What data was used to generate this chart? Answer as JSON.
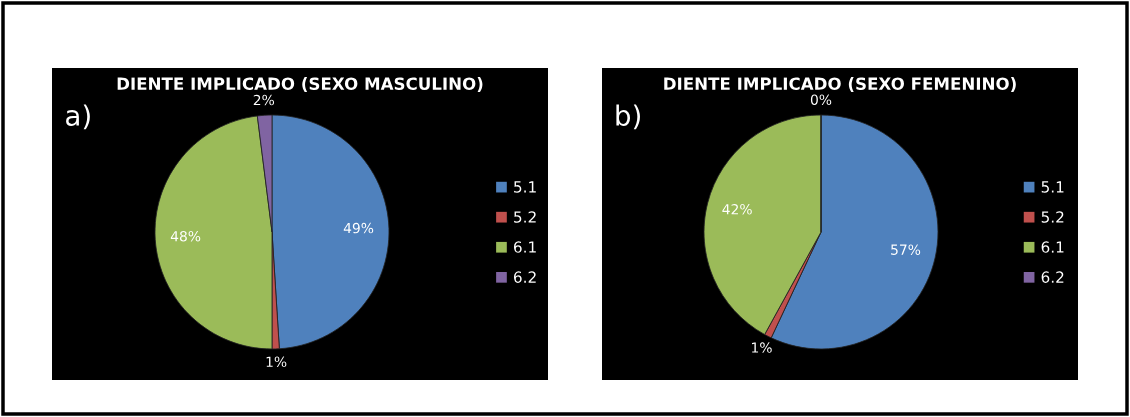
{
  "chart_data": [
    {
      "type": "pie",
      "title": "DIENTE IMPLICADO (SEXO MASCULINO)",
      "annotations": [
        "a)"
      ],
      "categories": [
        "5.1",
        "5.2",
        "6.1",
        "6.2"
      ],
      "values": [
        49,
        1,
        48,
        2
      ],
      "colors": [
        "#4f81bd",
        "#c0504d",
        "#9bbb59",
        "#8064a2"
      ],
      "value_labels": [
        "49%",
        "1%",
        "48%",
        "2%"
      ],
      "legend": "right"
    },
    {
      "type": "pie",
      "title": "DIENTE IMPLICADO (SEXO FEMENINO)",
      "annotations": [
        "b)"
      ],
      "categories": [
        "5.1",
        "5.2",
        "6.1",
        "6.2"
      ],
      "values": [
        57,
        1,
        42,
        0
      ],
      "colors": [
        "#4f81bd",
        "#c0504d",
        "#9bbb59",
        "#8064a2"
      ],
      "value_labels": [
        "57%",
        "1%",
        "42%",
        "0%"
      ],
      "legend": "right"
    }
  ]
}
